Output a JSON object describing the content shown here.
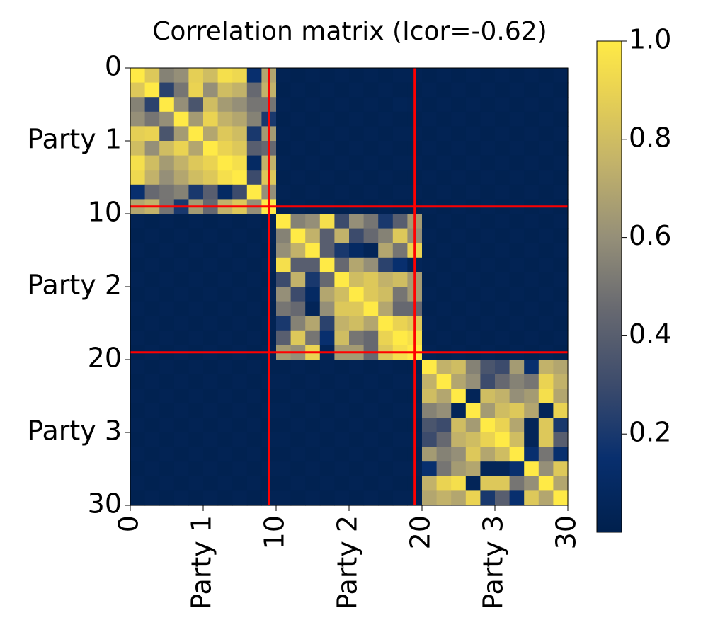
{
  "chart_data": {
    "type": "heatmap",
    "title": "Correlation matrix (Icor=-0.62)",
    "xlabel": "",
    "ylabel": "",
    "n": 30,
    "axis_range": [
      0,
      30
    ],
    "ticks": [
      {
        "value": 0,
        "label": "0"
      },
      {
        "value": 5,
        "label": "Party 1"
      },
      {
        "value": 10,
        "label": "10"
      },
      {
        "value": 15,
        "label": "Party 2"
      },
      {
        "value": 20,
        "label": "20"
      },
      {
        "value": 25,
        "label": "Party 3"
      },
      {
        "value": 30,
        "label": "30"
      }
    ],
    "group_boundaries": [
      9.5,
      19.5
    ],
    "colormap": "cividis",
    "colorbar": {
      "range": [
        0.0,
        1.0
      ],
      "ticks": [
        0.2,
        0.4,
        0.6,
        0.8,
        1.0
      ],
      "tick_labels": [
        "0.2",
        "0.4",
        "0.6",
        "0.8",
        "1.0"
      ]
    },
    "grid": false,
    "matrix": [
      [
        1.0,
        0.85,
        0.55,
        0.6,
        0.88,
        0.8,
        0.95,
        0.92,
        0.15,
        0.7,
        0.03,
        0.02,
        0.03,
        0.02,
        0.03,
        0.02,
        0.03,
        0.02,
        0.03,
        0.03,
        0.02,
        0.03,
        0.02,
        0.03,
        0.02,
        0.03,
        0.02,
        0.03,
        0.02,
        0.03
      ],
      [
        0.85,
        1.0,
        0.25,
        0.5,
        0.9,
        0.6,
        0.8,
        0.75,
        0.45,
        0.75,
        0.02,
        0.03,
        0.02,
        0.03,
        0.02,
        0.03,
        0.02,
        0.03,
        0.02,
        0.02,
        0.03,
        0.02,
        0.03,
        0.02,
        0.03,
        0.02,
        0.03,
        0.02,
        0.03,
        0.02
      ],
      [
        0.55,
        0.25,
        1.0,
        0.6,
        0.35,
        0.8,
        0.65,
        0.6,
        0.5,
        0.5,
        0.03,
        0.02,
        0.03,
        0.02,
        0.03,
        0.02,
        0.03,
        0.02,
        0.04,
        0.03,
        0.02,
        0.03,
        0.02,
        0.03,
        0.02,
        0.03,
        0.02,
        0.03,
        0.02,
        0.03
      ],
      [
        0.6,
        0.5,
        0.6,
        1.0,
        0.65,
        0.9,
        0.75,
        0.7,
        0.55,
        0.2,
        0.02,
        0.03,
        0.02,
        0.03,
        0.02,
        0.03,
        0.02,
        0.03,
        0.02,
        0.02,
        0.03,
        0.02,
        0.03,
        0.02,
        0.03,
        0.02,
        0.03,
        0.02,
        0.03,
        0.02
      ],
      [
        0.88,
        0.9,
        0.35,
        0.65,
        1.0,
        0.7,
        0.85,
        0.8,
        0.2,
        0.65,
        0.03,
        0.02,
        0.03,
        0.02,
        0.03,
        0.02,
        0.03,
        0.02,
        0.03,
        0.03,
        0.02,
        0.03,
        0.02,
        0.03,
        0.02,
        0.03,
        0.02,
        0.03,
        0.02,
        0.03
      ],
      [
        0.8,
        0.6,
        0.8,
        0.9,
        0.7,
        1.0,
        0.9,
        0.85,
        0.4,
        0.45,
        0.02,
        0.03,
        0.02,
        0.03,
        0.02,
        0.03,
        0.02,
        0.03,
        0.02,
        0.02,
        0.03,
        0.02,
        0.03,
        0.02,
        0.03,
        0.02,
        0.03,
        0.02,
        0.03,
        0.02
      ],
      [
        0.95,
        0.8,
        0.65,
        0.75,
        0.85,
        0.9,
        1.0,
        0.95,
        0.1,
        0.75,
        0.03,
        0.02,
        0.03,
        0.02,
        0.03,
        0.02,
        0.03,
        0.02,
        0.03,
        0.03,
        0.02,
        0.03,
        0.02,
        0.03,
        0.02,
        0.03,
        0.02,
        0.03,
        0.02,
        0.03
      ],
      [
        0.92,
        0.75,
        0.6,
        0.7,
        0.8,
        0.85,
        0.95,
        1.0,
        0.3,
        0.85,
        0.02,
        0.03,
        0.02,
        0.03,
        0.02,
        0.03,
        0.02,
        0.03,
        0.02,
        0.02,
        0.03,
        0.02,
        0.03,
        0.02,
        0.03,
        0.02,
        0.03,
        0.02,
        0.03,
        0.02
      ],
      [
        0.15,
        0.45,
        0.5,
        0.55,
        0.2,
        0.4,
        0.1,
        0.3,
        1.0,
        0.6,
        0.03,
        0.02,
        0.03,
        0.02,
        0.03,
        0.02,
        0.03,
        0.02,
        0.03,
        0.03,
        0.02,
        0.03,
        0.02,
        0.03,
        0.02,
        0.03,
        0.02,
        0.03,
        0.02,
        0.03
      ],
      [
        0.7,
        0.75,
        0.5,
        0.2,
        0.65,
        0.45,
        0.75,
        0.85,
        0.6,
        1.0,
        0.02,
        0.03,
        0.02,
        0.03,
        0.02,
        0.03,
        0.02,
        0.03,
        0.02,
        0.02,
        0.03,
        0.02,
        0.03,
        0.02,
        0.03,
        0.02,
        0.03,
        0.02,
        0.03,
        0.02
      ],
      [
        0.03,
        0.02,
        0.03,
        0.02,
        0.03,
        0.02,
        0.03,
        0.02,
        0.03,
        0.02,
        1.0,
        0.55,
        0.6,
        0.95,
        0.3,
        0.6,
        0.5,
        0.2,
        0.4,
        0.65,
        0.02,
        0.03,
        0.02,
        0.03,
        0.02,
        0.03,
        0.02,
        0.03,
        0.02,
        0.03
      ],
      [
        0.02,
        0.03,
        0.02,
        0.03,
        0.02,
        0.03,
        0.02,
        0.03,
        0.02,
        0.03,
        0.55,
        1.0,
        0.75,
        0.4,
        0.75,
        0.3,
        0.45,
        0.55,
        0.85,
        0.6,
        0.03,
        0.02,
        0.03,
        0.02,
        0.03,
        0.02,
        0.03,
        0.02,
        0.03,
        0.02
      ],
      [
        0.03,
        0.02,
        0.03,
        0.02,
        0.03,
        0.02,
        0.03,
        0.02,
        0.03,
        0.02,
        0.6,
        0.75,
        1.0,
        0.4,
        0.2,
        0.1,
        0.05,
        0.7,
        0.5,
        0.9,
        0.02,
        0.03,
        0.02,
        0.03,
        0.02,
        0.03,
        0.02,
        0.03,
        0.02,
        0.03
      ],
      [
        0.02,
        0.03,
        0.02,
        0.03,
        0.02,
        0.03,
        0.02,
        0.03,
        0.02,
        0.03,
        0.95,
        0.4,
        0.4,
        1.0,
        0.45,
        0.7,
        0.6,
        0.25,
        0.15,
        0.05,
        0.03,
        0.02,
        0.03,
        0.02,
        0.03,
        0.02,
        0.03,
        0.02,
        0.03,
        0.02
      ],
      [
        0.03,
        0.02,
        0.03,
        0.02,
        0.03,
        0.02,
        0.03,
        0.02,
        0.03,
        0.02,
        0.3,
        0.75,
        0.2,
        0.45,
        1.0,
        0.8,
        0.85,
        0.75,
        0.8,
        0.65,
        0.02,
        0.03,
        0.02,
        0.03,
        0.02,
        0.03,
        0.02,
        0.03,
        0.02,
        0.03
      ],
      [
        0.02,
        0.03,
        0.02,
        0.03,
        0.02,
        0.03,
        0.02,
        0.03,
        0.02,
        0.03,
        0.6,
        0.3,
        0.1,
        0.7,
        0.8,
        1.0,
        0.85,
        0.8,
        0.5,
        0.65,
        0.03,
        0.02,
        0.03,
        0.02,
        0.03,
        0.02,
        0.03,
        0.02,
        0.03,
        0.02
      ],
      [
        0.03,
        0.02,
        0.03,
        0.02,
        0.03,
        0.02,
        0.03,
        0.02,
        0.03,
        0.02,
        0.5,
        0.45,
        0.05,
        0.6,
        0.85,
        0.85,
        1.0,
        0.7,
        0.45,
        0.45,
        0.02,
        0.03,
        0.02,
        0.03,
        0.02,
        0.03,
        0.02,
        0.03,
        0.02,
        0.03
      ],
      [
        0.02,
        0.03,
        0.02,
        0.03,
        0.02,
        0.03,
        0.02,
        0.03,
        0.02,
        0.03,
        0.2,
        0.55,
        0.7,
        0.25,
        0.75,
        0.8,
        0.7,
        1.0,
        0.9,
        0.85,
        0.03,
        0.02,
        0.03,
        0.02,
        0.03,
        0.02,
        0.03,
        0.02,
        0.03,
        0.02
      ],
      [
        0.03,
        0.02,
        0.03,
        0.02,
        0.03,
        0.02,
        0.03,
        0.02,
        0.03,
        0.02,
        0.4,
        0.85,
        0.5,
        0.15,
        0.8,
        0.5,
        0.45,
        0.9,
        1.0,
        0.95,
        0.02,
        0.03,
        0.02,
        0.03,
        0.02,
        0.03,
        0.02,
        0.03,
        0.02,
        0.03
      ],
      [
        0.02,
        0.03,
        0.02,
        0.03,
        0.02,
        0.03,
        0.02,
        0.03,
        0.02,
        0.03,
        0.65,
        0.6,
        0.9,
        0.05,
        0.65,
        0.65,
        0.45,
        0.85,
        0.95,
        1.0,
        0.03,
        0.02,
        0.03,
        0.02,
        0.03,
        0.02,
        0.03,
        0.02,
        0.03,
        0.02
      ],
      [
        0.03,
        0.02,
        0.03,
        0.02,
        0.03,
        0.02,
        0.03,
        0.02,
        0.03,
        0.02,
        0.02,
        0.03,
        0.02,
        0.03,
        0.02,
        0.03,
        0.02,
        0.03,
        0.02,
        0.02,
        1.0,
        0.75,
        0.8,
        0.55,
        0.35,
        0.3,
        0.65,
        0.15,
        0.75,
        0.7
      ],
      [
        0.02,
        0.03,
        0.02,
        0.03,
        0.02,
        0.03,
        0.02,
        0.03,
        0.02,
        0.03,
        0.03,
        0.02,
        0.03,
        0.02,
        0.03,
        0.02,
        0.03,
        0.02,
        0.03,
        0.03,
        0.75,
        1.0,
        0.7,
        0.6,
        0.3,
        0.45,
        0.55,
        0.5,
        0.9,
        0.75
      ],
      [
        0.03,
        0.02,
        0.03,
        0.02,
        0.03,
        0.02,
        0.03,
        0.02,
        0.03,
        0.02,
        0.02,
        0.03,
        0.02,
        0.03,
        0.02,
        0.03,
        0.02,
        0.03,
        0.02,
        0.02,
        0.8,
        0.7,
        1.0,
        0.05,
        0.8,
        0.75,
        0.6,
        0.65,
        0.95,
        0.7
      ],
      [
        0.02,
        0.03,
        0.02,
        0.03,
        0.02,
        0.03,
        0.02,
        0.03,
        0.02,
        0.03,
        0.03,
        0.02,
        0.03,
        0.02,
        0.03,
        0.02,
        0.03,
        0.02,
        0.03,
        0.03,
        0.55,
        0.6,
        0.05,
        1.0,
        0.65,
        0.8,
        0.85,
        0.7,
        0.05,
        0.9
      ],
      [
        0.03,
        0.02,
        0.03,
        0.02,
        0.03,
        0.02,
        0.03,
        0.02,
        0.03,
        0.02,
        0.02,
        0.03,
        0.02,
        0.03,
        0.02,
        0.03,
        0.02,
        0.03,
        0.02,
        0.02,
        0.35,
        0.3,
        0.8,
        0.65,
        1.0,
        0.9,
        0.7,
        0.05,
        0.85,
        0.2
      ],
      [
        0.02,
        0.03,
        0.02,
        0.03,
        0.02,
        0.03,
        0.02,
        0.03,
        0.02,
        0.03,
        0.03,
        0.02,
        0.03,
        0.02,
        0.03,
        0.02,
        0.03,
        0.02,
        0.03,
        0.03,
        0.3,
        0.45,
        0.75,
        0.8,
        0.9,
        1.0,
        0.8,
        0.05,
        0.85,
        0.4
      ],
      [
        0.03,
        0.02,
        0.03,
        0.02,
        0.03,
        0.02,
        0.03,
        0.02,
        0.03,
        0.02,
        0.02,
        0.03,
        0.02,
        0.03,
        0.02,
        0.03,
        0.02,
        0.03,
        0.02,
        0.02,
        0.65,
        0.55,
        0.6,
        0.85,
        0.7,
        0.8,
        1.0,
        0.15,
        0.5,
        0.15
      ],
      [
        0.02,
        0.03,
        0.02,
        0.03,
        0.02,
        0.03,
        0.02,
        0.03,
        0.02,
        0.03,
        0.03,
        0.02,
        0.03,
        0.02,
        0.03,
        0.02,
        0.03,
        0.02,
        0.03,
        0.03,
        0.15,
        0.5,
        0.65,
        0.7,
        0.05,
        0.05,
        0.15,
        1.0,
        0.6,
        0.85
      ],
      [
        0.03,
        0.02,
        0.03,
        0.02,
        0.03,
        0.02,
        0.03,
        0.02,
        0.03,
        0.02,
        0.02,
        0.03,
        0.02,
        0.03,
        0.02,
        0.03,
        0.02,
        0.03,
        0.02,
        0.02,
        0.75,
        0.9,
        0.95,
        0.05,
        0.85,
        0.85,
        0.5,
        0.6,
        1.0,
        0.7
      ],
      [
        0.02,
        0.03,
        0.02,
        0.03,
        0.02,
        0.03,
        0.02,
        0.03,
        0.02,
        0.03,
        0.03,
        0.02,
        0.03,
        0.02,
        0.03,
        0.02,
        0.03,
        0.02,
        0.03,
        0.03,
        0.7,
        0.75,
        0.7,
        0.9,
        0.2,
        0.4,
        0.15,
        0.85,
        0.7,
        1.0
      ]
    ],
    "colors": {
      "group_line": "#ff0000",
      "cmap_low": "#00204d",
      "cmap_mid": "#7c7b78",
      "cmap_high": "#ffea46"
    }
  }
}
